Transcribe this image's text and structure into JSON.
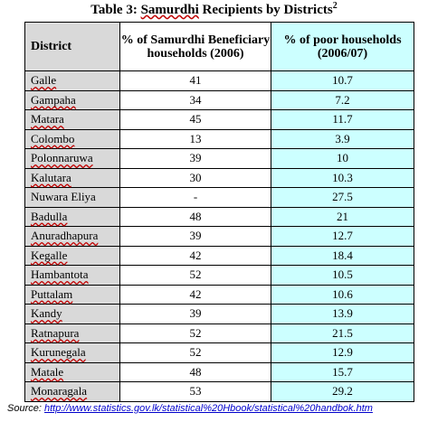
{
  "title": {
    "prefix": "Table 3:",
    "word": "Samurdhi",
    "rest": "Recipients by Districts",
    "sup": "2"
  },
  "headers": {
    "district": "District",
    "beneficiary": "% of Samurdhi Beneficiary households (2006)",
    "poor": "% of poor households (2006/07)"
  },
  "rows": [
    {
      "district": "Galle",
      "beneficiary": "41",
      "poor": "10.7"
    },
    {
      "district": "Gampaha",
      "beneficiary": "34",
      "poor": "7.2"
    },
    {
      "district": "Matara",
      "beneficiary": "45",
      "poor": "11.7"
    },
    {
      "district": "Colombo",
      "beneficiary": "13",
      "poor": "3.9"
    },
    {
      "district": "Polonnaruwa",
      "beneficiary": "39",
      "poor": "10"
    },
    {
      "district": "Kalutara",
      "beneficiary": "30",
      "poor": "10.3"
    },
    {
      "district": "Nuwara Eliya",
      "beneficiary": "-",
      "poor": "27.5"
    },
    {
      "district": "Badulla",
      "beneficiary": "48",
      "poor": "21"
    },
    {
      "district": "Anuradhapura",
      "beneficiary": "39",
      "poor": "12.7"
    },
    {
      "district": "Kegalle",
      "beneficiary": "42",
      "poor": "18.4"
    },
    {
      "district": "Hambantota",
      "beneficiary": "52",
      "poor": "10.5"
    },
    {
      "district": "Puttalam",
      "beneficiary": "42",
      "poor": "10.6"
    },
    {
      "district": "Kandy",
      "beneficiary": "39",
      "poor": "13.9"
    },
    {
      "district": "Ratnapura",
      "beneficiary": "52",
      "poor": "21.5"
    },
    {
      "district": "Kurunegala",
      "beneficiary": "52",
      "poor": "12.9"
    },
    {
      "district": "Matale",
      "beneficiary": "48",
      "poor": "15.7"
    },
    {
      "district": "Monaragala",
      "beneficiary": "53",
      "poor": "29.2"
    }
  ],
  "source": {
    "label": "Source:",
    "url": "http://www.statistics.gov.lk/statistical%20Hbook/statistical%20handbok.htm"
  },
  "colors": {
    "district_col_bg": "#d9d9d9",
    "poor_col_bg": "#ccffff",
    "spellcheck_underline": "#c00000",
    "link": "#0000cc"
  }
}
